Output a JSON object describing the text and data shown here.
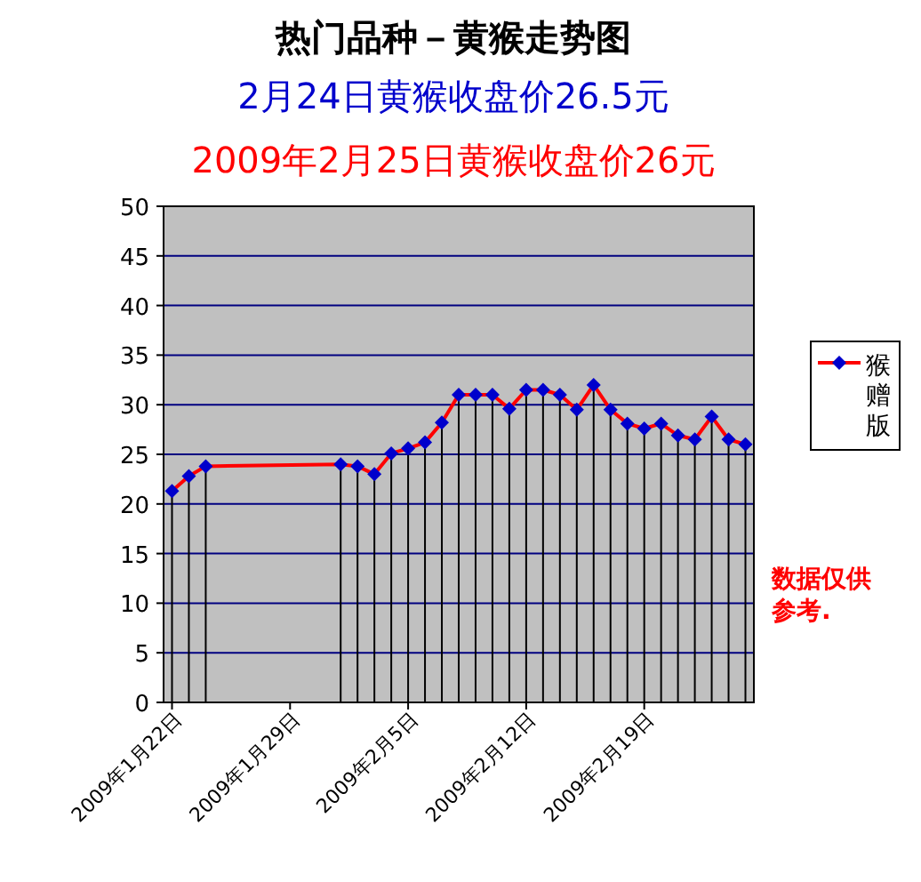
{
  "chart_data": {
    "type": "line",
    "title": "热门品种－黄猴走势图",
    "subtitle": "2月24日黄猴收盘价26.5元",
    "annotations": [
      "2009年2月25日黄猴收盘价26元",
      "数据仅供参考."
    ],
    "x": [
      "2009-01-22",
      "2009-01-23",
      "2009-01-24",
      "2009-02-01",
      "2009-02-02",
      "2009-02-03",
      "2009-02-04",
      "2009-02-05",
      "2009-02-06",
      "2009-02-07",
      "2009-02-08",
      "2009-02-09",
      "2009-02-10",
      "2009-02-11",
      "2009-02-12",
      "2009-02-13",
      "2009-02-14",
      "2009-02-15",
      "2009-02-16",
      "2009-02-17",
      "2009-02-18",
      "2009-02-19",
      "2009-02-20",
      "2009-02-21",
      "2009-02-22",
      "2009-02-23",
      "2009-02-24",
      "2009-02-25"
    ],
    "series": [
      {
        "name": "猴赠版",
        "color": "#ff0000",
        "values": [
          21.3,
          22.8,
          23.8,
          24.0,
          23.8,
          23.0,
          25.1,
          25.6,
          26.2,
          28.2,
          31.0,
          31.0,
          31.0,
          29.6,
          31.5,
          31.5,
          31.0,
          29.5,
          32.0,
          29.5,
          28.1,
          27.6,
          28.1,
          26.9,
          26.5,
          28.8,
          26.5,
          26
        ],
        "errors": [
          [
            0,
            21.3
          ],
          [
            0,
            22.8
          ],
          [
            0,
            23.8
          ],
          [
            0,
            24.0
          ],
          [
            0,
            23.8
          ],
          [
            0,
            23.0
          ],
          [
            0,
            25.1
          ],
          [
            0,
            25.6
          ],
          [
            0,
            26.2
          ],
          [
            0,
            28.2
          ],
          [
            0,
            31.0
          ],
          [
            0,
            31.0
          ],
          [
            0,
            31.0
          ],
          [
            0,
            29.6
          ],
          [
            0,
            31.5
          ],
          [
            0,
            31.5
          ],
          [
            0,
            31.0
          ],
          [
            0,
            29.5
          ],
          [
            0,
            32.0
          ],
          [
            0,
            29.5
          ],
          [
            0,
            28.1
          ],
          [
            0,
            27.6
          ],
          [
            0,
            28.1
          ],
          [
            0,
            26.9
          ],
          [
            0,
            26.5
          ],
          [
            0,
            28.8
          ],
          [
            0,
            26.5
          ],
          [
            0,
            26
          ]
        ]
      }
    ],
    "xlim": [
      "2009-01-21T12:00",
      "2009-02-25T12:00"
    ],
    "xticks": [
      {
        "value": "2009-01-22",
        "label": "2009年1月22日"
      },
      {
        "value": "2009-01-29",
        "label": "2009年1月29日"
      },
      {
        "value": "2009-02-05",
        "label": "2009年2月5日"
      },
      {
        "value": "2009-02-12",
        "label": "2009年2月12日"
      },
      {
        "value": "2009-02-19",
        "label": "2009年2月19日"
      }
    ],
    "ylim": [
      0,
      50
    ],
    "yticks": [
      0,
      5,
      10,
      15,
      20,
      25,
      30,
      35,
      40,
      45,
      50
    ],
    "grid": "y",
    "legend": "right",
    "marker": "diamond",
    "line_style": "solid"
  }
}
